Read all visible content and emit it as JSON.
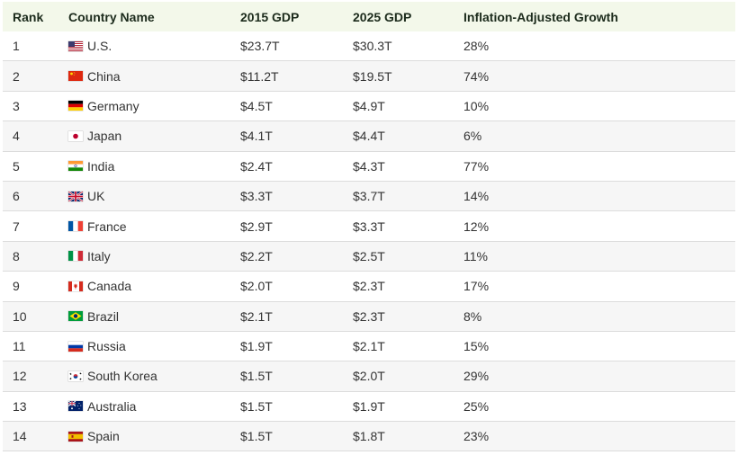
{
  "table": {
    "headers": [
      "Rank",
      "Country Name",
      "2015 GDP",
      "2025 GDP",
      "Inflation-Adjusted Growth"
    ],
    "rows": [
      {
        "rank": "1",
        "country": "U.S.",
        "flag": "us-flag-icon",
        "gdp2015": "$23.7T",
        "gdp2025": "$30.3T",
        "growth": "28%"
      },
      {
        "rank": "2",
        "country": "China",
        "flag": "china-flag-icon",
        "gdp2015": "$11.2T",
        "gdp2025": "$19.5T",
        "growth": "74%"
      },
      {
        "rank": "3",
        "country": "Germany",
        "flag": "germany-flag-icon",
        "gdp2015": "$4.5T",
        "gdp2025": "$4.9T",
        "growth": "10%"
      },
      {
        "rank": "4",
        "country": "Japan",
        "flag": "japan-flag-icon",
        "gdp2015": "$4.1T",
        "gdp2025": "$4.4T",
        "growth": "6%"
      },
      {
        "rank": "5",
        "country": "India",
        "flag": "india-flag-icon",
        "gdp2015": "$2.4T",
        "gdp2025": "$4.3T",
        "growth": "77%"
      },
      {
        "rank": "6",
        "country": "UK",
        "flag": "uk-flag-icon",
        "gdp2015": "$3.3T",
        "gdp2025": "$3.7T",
        "growth": "14%"
      },
      {
        "rank": "7",
        "country": "France",
        "flag": "france-flag-icon",
        "gdp2015": "$2.9T",
        "gdp2025": "$3.3T",
        "growth": "12%"
      },
      {
        "rank": "8",
        "country": "Italy",
        "flag": "italy-flag-icon",
        "gdp2015": "$2.2T",
        "gdp2025": "$2.5T",
        "growth": "11%"
      },
      {
        "rank": "9",
        "country": "Canada",
        "flag": "canada-flag-icon",
        "gdp2015": "$2.0T",
        "gdp2025": "$2.3T",
        "growth": "17%"
      },
      {
        "rank": "10",
        "country": "Brazil",
        "flag": "brazil-flag-icon",
        "gdp2015": "$2.1T",
        "gdp2025": "$2.3T",
        "growth": "8%"
      },
      {
        "rank": "11",
        "country": "Russia",
        "flag": "russia-flag-icon",
        "gdp2015": "$1.9T",
        "gdp2025": "$2.1T",
        "growth": "15%"
      },
      {
        "rank": "12",
        "country": "South Korea",
        "flag": "south-korea-flag-icon",
        "gdp2015": "$1.5T",
        "gdp2025": "$2.0T",
        "growth": "29%"
      },
      {
        "rank": "13",
        "country": "Australia",
        "flag": "australia-flag-icon",
        "gdp2015": "$1.5T",
        "gdp2025": "$1.9T",
        "growth": "25%"
      },
      {
        "rank": "14",
        "country": "Spain",
        "flag": "spain-flag-icon",
        "gdp2015": "$1.5T",
        "gdp2025": "$1.8T",
        "growth": "23%"
      }
    ]
  },
  "colors": {
    "header_bg": "#f3f8ea",
    "alt_row_bg": "#f6f6f6",
    "border": "#dcdcdc",
    "text": "#333333"
  }
}
